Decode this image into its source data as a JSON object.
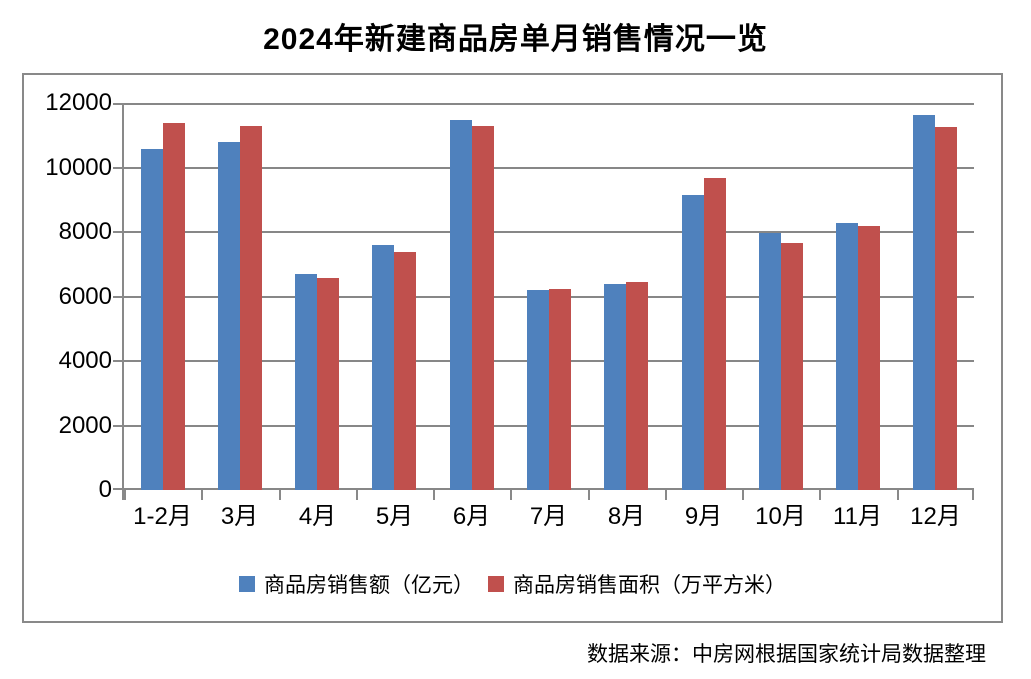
{
  "chart_data": {
    "type": "bar",
    "title": "2024年新建商品房单月销售情况一览",
    "categories": [
      "1-2月",
      "3月",
      "4月",
      "5月",
      "6月",
      "7月",
      "8月",
      "9月",
      "10月",
      "11月",
      "12月"
    ],
    "series": [
      {
        "name": "商品房销售额（亿元）",
        "color": "#4F81BD",
        "values": [
          10566,
          10789,
          6712,
          7598,
          11468,
          6197,
          6393,
          9157,
          7975,
          8270,
          11625
        ]
      },
      {
        "name": "商品房销售面积（万平方米）",
        "color": "#C0504D",
        "values": [
          11369,
          11299,
          6584,
          7390,
          11274,
          6233,
          6453,
          9682,
          7646,
          8188,
          11267
        ]
      }
    ],
    "ylim": [
      0,
      12000
    ],
    "ytick_step": 2000,
    "ytick_labels": [
      "0",
      "2000",
      "4000",
      "6000",
      "8000",
      "10000",
      "12000"
    ],
    "grid": true,
    "legend_position": "bottom",
    "xlabel": "",
    "ylabel": "",
    "source": "数据来源：中房网根据国家统计局数据整理",
    "colors": {
      "grid": "#878787",
      "axis": "#898989",
      "frame_border": "#898989",
      "title_text": "#000000",
      "label_text": "#000000"
    }
  }
}
